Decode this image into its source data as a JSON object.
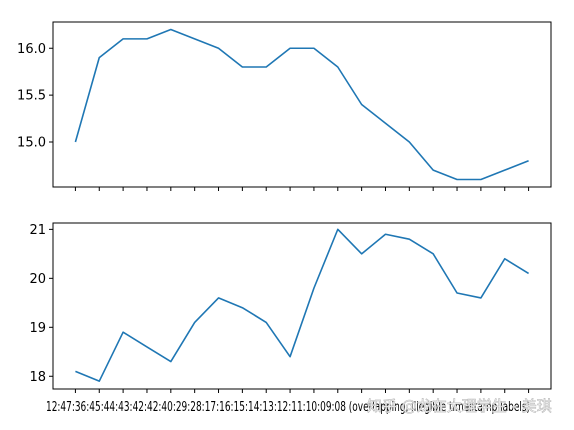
{
  "chart_data": [
    {
      "type": "line",
      "title": "",
      "xlabel": "",
      "ylabel": "",
      "color": "#1f77b4",
      "shared_x": true,
      "y": [
        15.0,
        15.9,
        16.1,
        16.1,
        16.2,
        16.1,
        16.0,
        15.8,
        15.8,
        16.0,
        16.0,
        15.8,
        15.4,
        15.2,
        15.0,
        14.7,
        14.6,
        14.6,
        14.7,
        14.8
      ],
      "ylim": [
        14.52,
        16.28
      ],
      "yticks": [
        15.0,
        15.5,
        16.0
      ],
      "ytick_labels": [
        "15.0",
        "15.5",
        "16.0"
      ],
      "xtick_labels_visible": false,
      "grid": false,
      "legend": "none"
    },
    {
      "type": "line",
      "title": "",
      "xlabel": "",
      "ylabel": "",
      "color": "#1f77b4",
      "y": [
        18.1,
        17.9,
        18.9,
        18.6,
        18.3,
        19.1,
        19.6,
        19.4,
        19.1,
        18.4,
        19.8,
        21.0,
        20.5,
        20.9,
        20.8,
        20.5,
        19.7,
        19.6,
        20.4,
        20.1
      ],
      "ylim": [
        17.74,
        21.13
      ],
      "yticks": [
        18,
        19,
        20,
        21
      ],
      "ytick_labels": [
        "18",
        "19",
        "20",
        "21"
      ],
      "x_tick_count": 20,
      "x_tick_labels_overlapping_text": "12:47:36:45:44:43:42:42:40:29:28:17:16:15:14:13:12:11:10:09:08 (overlapping, illegible timestamp labels)",
      "grid": false,
      "legend": "none"
    }
  ],
  "watermark": {
    "text": "知乎 @龙在大理学生 - 美琪"
  }
}
